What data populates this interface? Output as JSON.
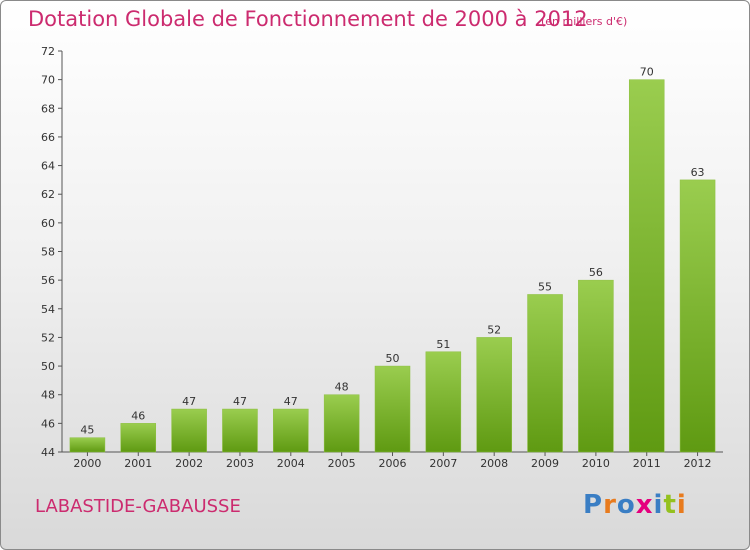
{
  "header": {
    "title": "Dotation Globale de Fonctionnement de 2000 à 2012",
    "unit": "(en milliers d'€)"
  },
  "footer": {
    "commune": "LABASTIDE-GABAUSSE",
    "logo_text": "Proxiti",
    "logo_colors": [
      "#3a7ec4",
      "#e87b1e",
      "#3a7ec4",
      "#e5007e",
      "#3a7ec4",
      "#94c11f",
      "#e87b1e"
    ]
  },
  "colors": {
    "accent": "#cc2b6f",
    "bar_top": "#9acd4f",
    "bar_bottom": "#5f9a12"
  },
  "chart_data": {
    "type": "bar",
    "title": "Dotation Globale de Fonctionnement de 2000 à 2012",
    "subtitle": "(en milliers d'€)",
    "categories": [
      "2000",
      "2001",
      "2002",
      "2003",
      "2004",
      "2005",
      "2006",
      "2007",
      "2008",
      "2009",
      "2010",
      "2011",
      "2012"
    ],
    "values": [
      45,
      46,
      47,
      47,
      47,
      48,
      50,
      51,
      52,
      55,
      56,
      70,
      63
    ],
    "ylim": [
      44,
      72
    ],
    "yticks": [
      44,
      46,
      48,
      50,
      52,
      54,
      56,
      58,
      60,
      62,
      64,
      66,
      68,
      70,
      72
    ],
    "grid": false,
    "legend": "none",
    "data_labels": true
  }
}
